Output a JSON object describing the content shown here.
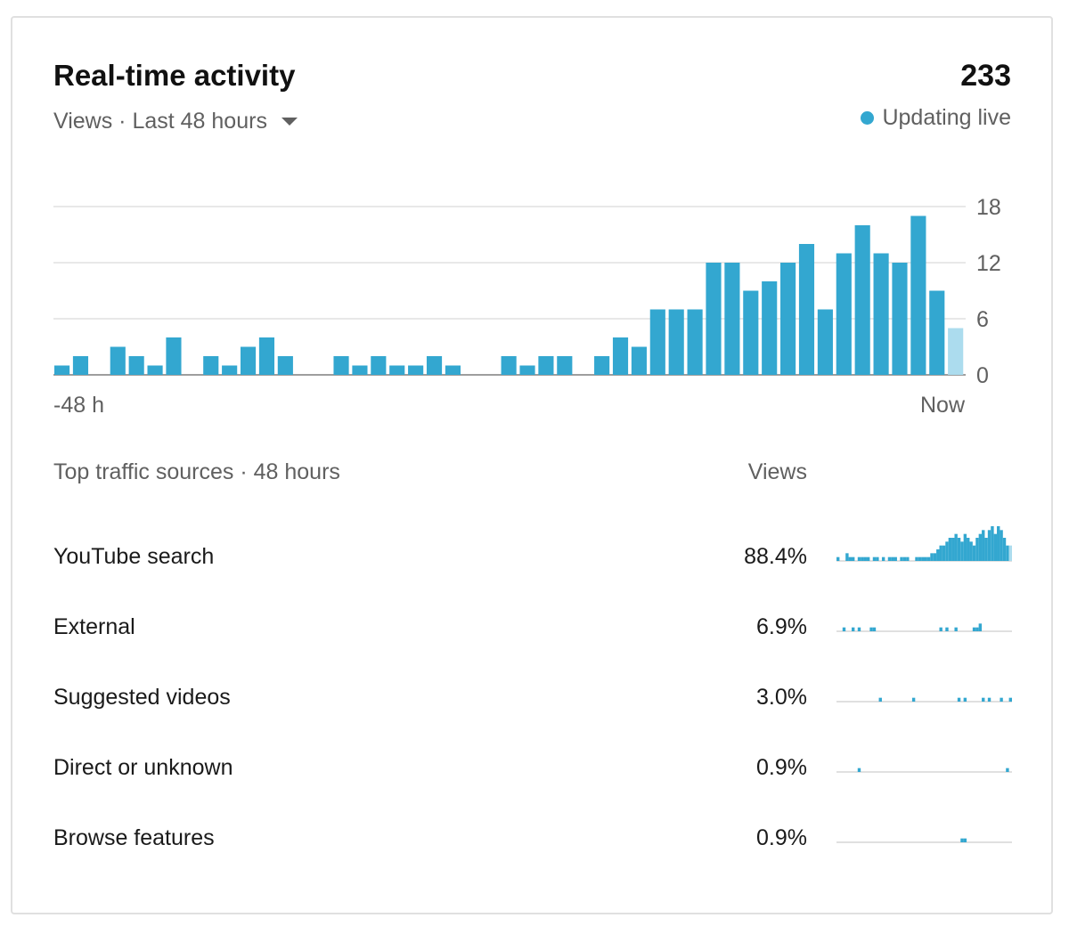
{
  "header": {
    "title": "Real-time activity",
    "subtitle": "Views · Last 48 hours",
    "total_views": "233",
    "live_label": "Updating live",
    "live_color": "#33a7d0"
  },
  "chart_data": {
    "type": "bar",
    "title": "Views · Last 48 hours",
    "xlabel": "",
    "ylabel": "",
    "ylim": [
      0,
      18
    ],
    "yticks": [
      "18",
      "12",
      "6",
      "0"
    ],
    "x_start_label": "-48 h",
    "x_end_label": "Now",
    "bar_color": "#33a7d0",
    "current_bar_color": "#acdcee",
    "values": [
      1,
      2,
      0,
      3,
      2,
      1,
      4,
      0,
      2,
      1,
      3,
      4,
      2,
      0,
      0,
      2,
      1,
      2,
      1,
      1,
      2,
      1,
      0,
      0,
      2,
      1,
      2,
      2,
      0,
      2,
      4,
      3,
      7,
      7,
      7,
      12,
      12,
      9,
      10,
      12,
      14,
      7,
      13,
      16,
      13,
      12,
      17,
      9,
      5
    ]
  },
  "traffic": {
    "section_label": "Top traffic sources · 48 hours",
    "views_header": "Views",
    "sources": [
      {
        "name": "YouTube search",
        "pct": "88.4%",
        "spark": [
          1,
          0,
          0,
          2,
          1,
          1,
          0,
          1,
          1,
          1,
          1,
          0,
          1,
          1,
          0,
          1,
          0,
          1,
          1,
          1,
          0,
          1,
          1,
          1,
          0,
          0,
          1,
          1,
          1,
          1,
          1,
          2,
          2,
          3,
          4,
          4,
          5,
          6,
          6,
          7,
          6,
          5,
          7,
          6,
          5,
          4,
          6,
          7,
          8,
          6,
          8,
          9,
          7,
          9,
          8,
          6,
          4,
          4
        ]
      },
      {
        "name": "External",
        "pct": "6.9%",
        "spark": [
          0,
          0,
          1,
          0,
          0,
          1,
          0,
          1,
          0,
          0,
          0,
          1,
          1,
          0,
          0,
          0,
          0,
          0,
          0,
          0,
          0,
          0,
          0,
          0,
          0,
          0,
          0,
          0,
          0,
          0,
          0,
          0,
          0,
          0,
          1,
          0,
          1,
          0,
          0,
          1,
          0,
          0,
          0,
          0,
          0,
          1,
          1,
          2,
          0,
          0,
          0,
          0,
          0,
          0,
          0,
          0,
          0,
          0
        ]
      },
      {
        "name": "Suggested videos",
        "pct": "3.0%",
        "spark": [
          0,
          0,
          0,
          0,
          0,
          0,
          0,
          0,
          0,
          0,
          0,
          0,
          0,
          0,
          1,
          0,
          0,
          0,
          0,
          0,
          0,
          0,
          0,
          0,
          0,
          1,
          0,
          0,
          0,
          0,
          0,
          0,
          0,
          0,
          0,
          0,
          0,
          0,
          0,
          0,
          1,
          0,
          1,
          0,
          0,
          0,
          0,
          0,
          1,
          0,
          1,
          0,
          0,
          0,
          1,
          0,
          0,
          1
        ]
      },
      {
        "name": "Direct or unknown",
        "pct": "0.9%",
        "spark": [
          0,
          0,
          0,
          0,
          0,
          0,
          0,
          1,
          0,
          0,
          0,
          0,
          0,
          0,
          0,
          0,
          0,
          0,
          0,
          0,
          0,
          0,
          0,
          0,
          0,
          0,
          0,
          0,
          0,
          0,
          0,
          0,
          0,
          0,
          0,
          0,
          0,
          0,
          0,
          0,
          0,
          0,
          0,
          0,
          0,
          0,
          0,
          0,
          0,
          0,
          0,
          0,
          0,
          0,
          0,
          0,
          1,
          0
        ]
      },
      {
        "name": "Browse features",
        "pct": "0.9%",
        "spark": [
          0,
          0,
          0,
          0,
          0,
          0,
          0,
          0,
          0,
          0,
          0,
          0,
          0,
          0,
          0,
          0,
          0,
          0,
          0,
          0,
          0,
          0,
          0,
          0,
          0,
          0,
          0,
          0,
          0,
          0,
          0,
          0,
          0,
          0,
          0,
          0,
          0,
          0,
          0,
          0,
          0,
          1,
          1,
          0,
          0,
          0,
          0,
          0,
          0,
          0,
          0,
          0,
          0,
          0,
          0,
          0,
          0,
          0
        ]
      }
    ]
  }
}
